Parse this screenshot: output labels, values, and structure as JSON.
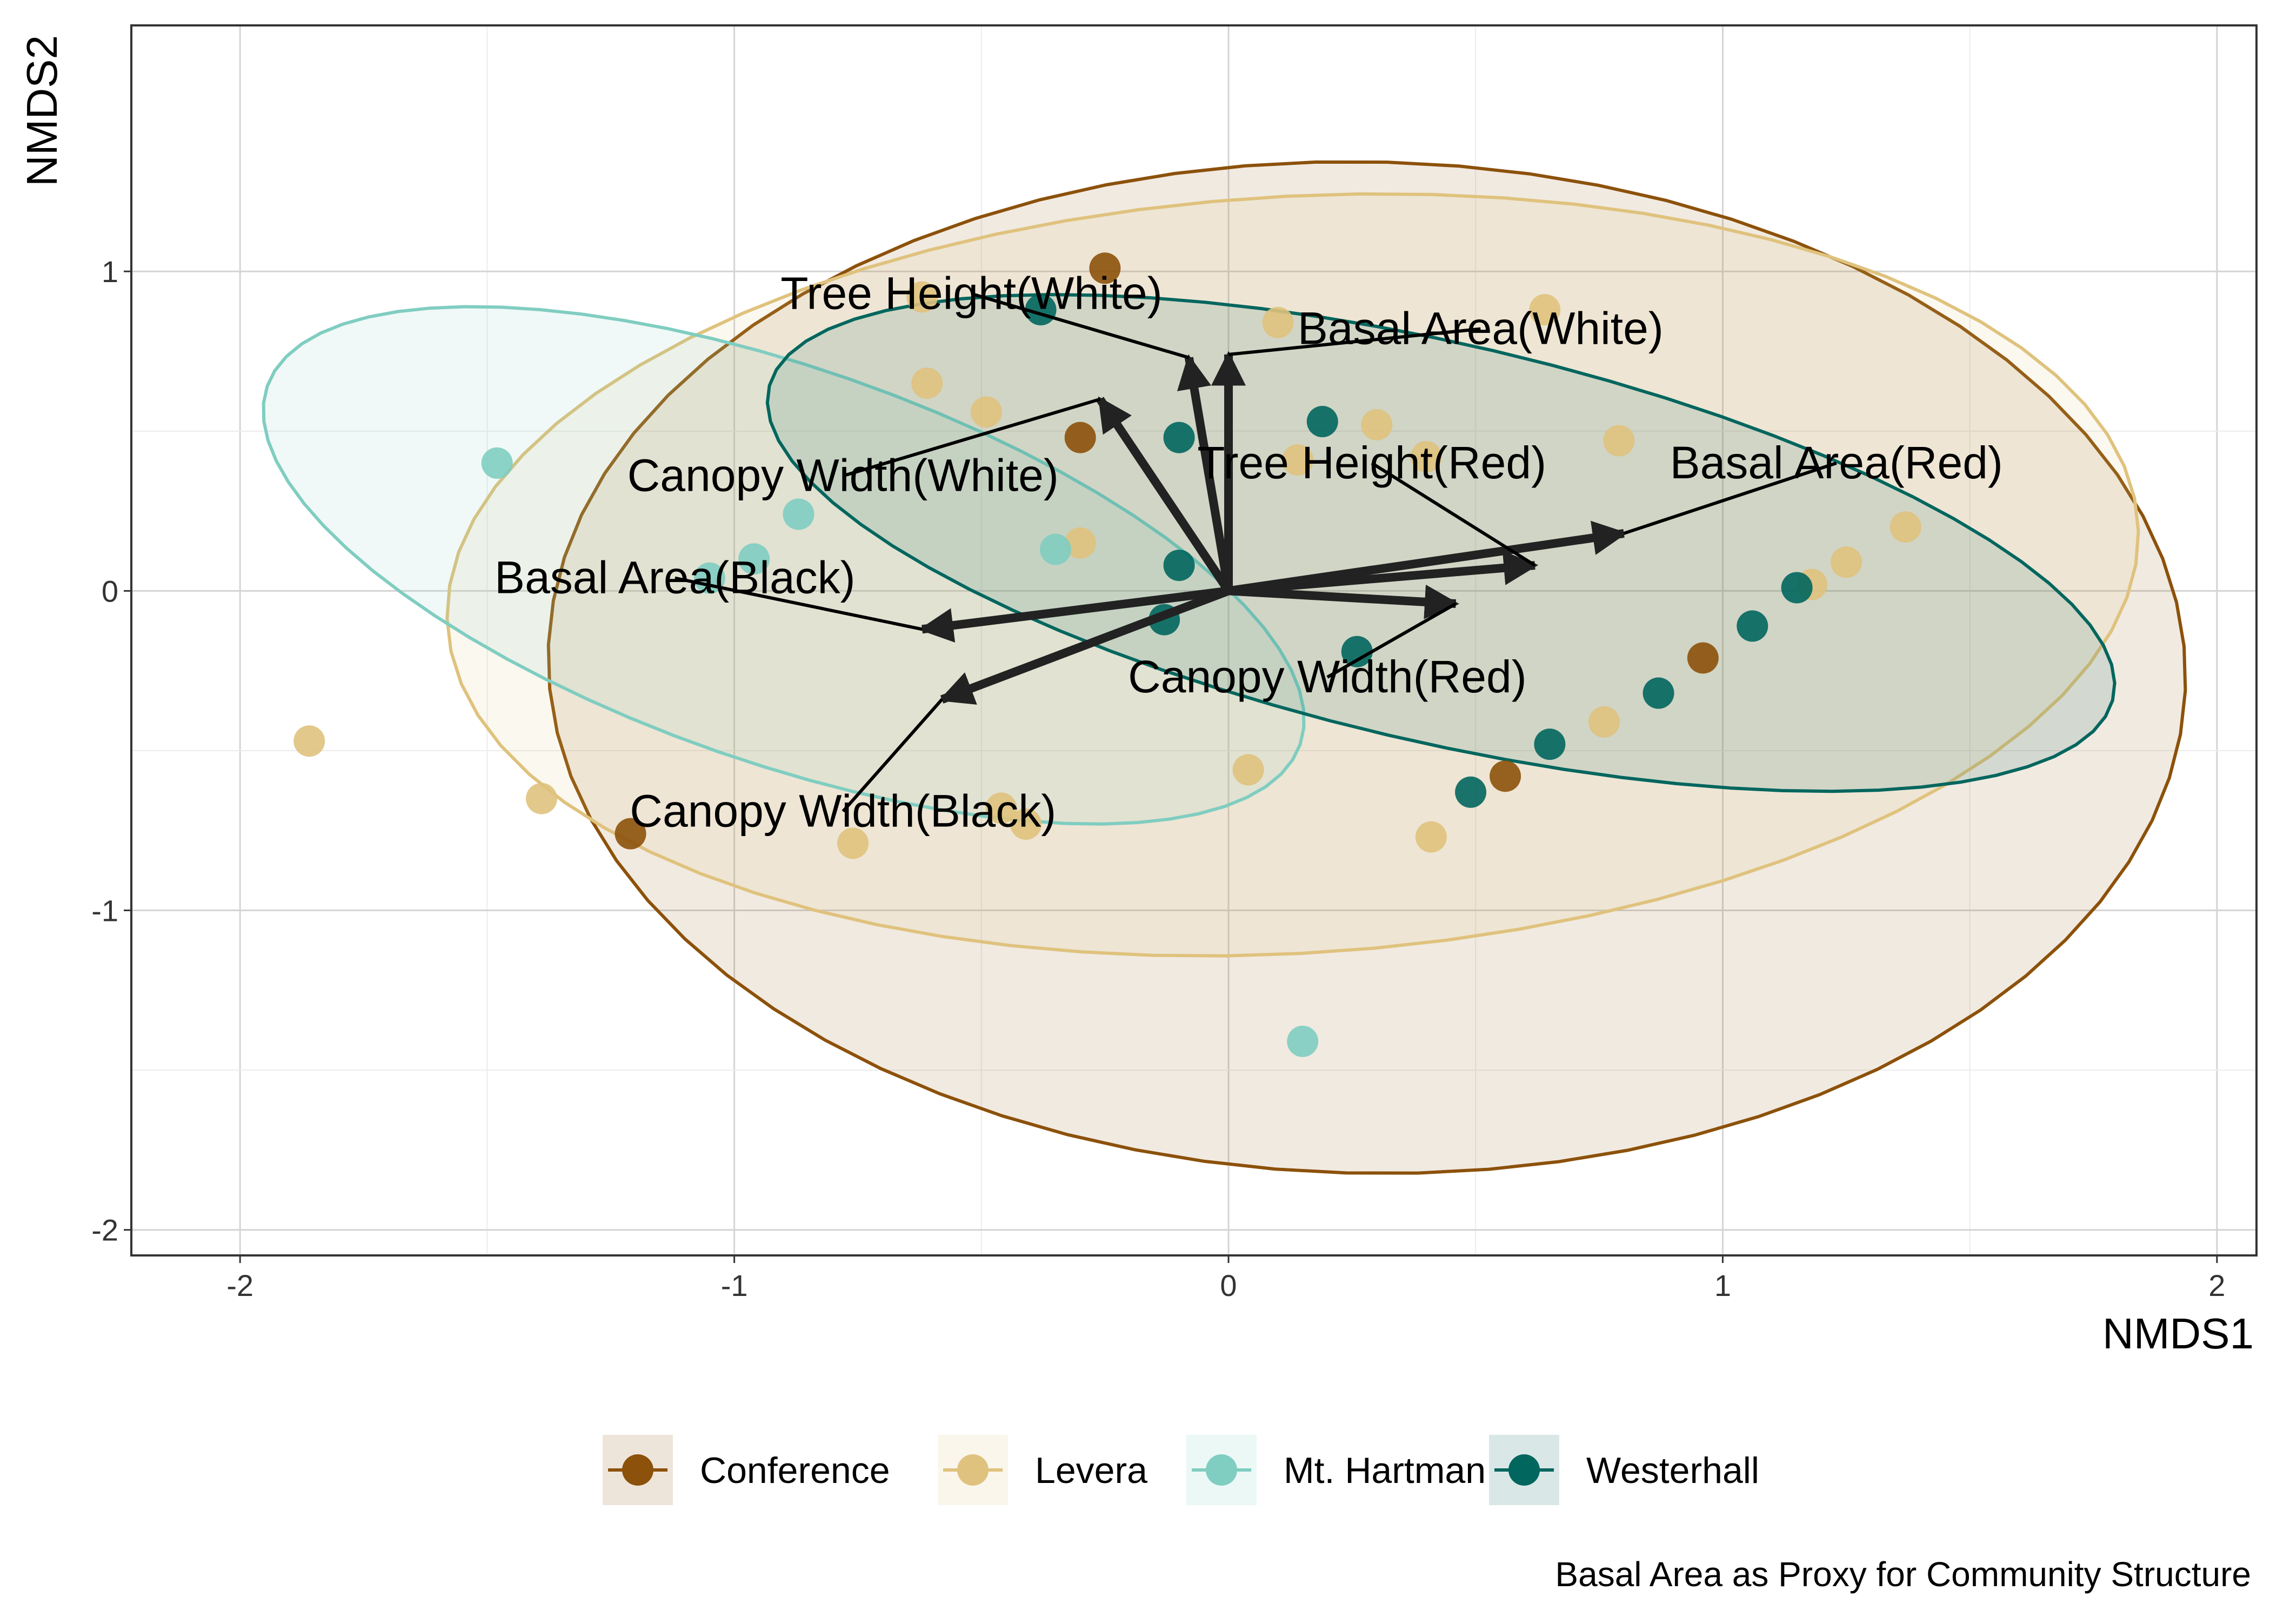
{
  "chart_data": {
    "type": "scatter",
    "xlabel": "NMDS1",
    "ylabel": "NMDS2",
    "caption": "Basal Area as Proxy for Community Structure",
    "xlim": [
      -2.22,
      2.08
    ],
    "ylim": [
      -2.08,
      1.77
    ],
    "x_ticks": [
      -2,
      -1,
      0,
      1,
      2
    ],
    "y_ticks": [
      -2,
      -1,
      0,
      1
    ],
    "grid": true,
    "legend_position": "bottom",
    "series": [
      {
        "name": "Conference",
        "color": "#8C510A",
        "points": [
          {
            "x": -0.25,
            "y": 1.01
          },
          {
            "x": -0.3,
            "y": 0.48
          },
          {
            "x": -1.21,
            "y": -0.76
          },
          {
            "x": 0.56,
            "y": -0.58
          },
          {
            "x": 0.96,
            "y": -0.21
          }
        ],
        "ellipse": {
          "cx": 0.28,
          "cy": -0.24,
          "rx": 1.66,
          "ry": 1.58,
          "angle_deg": -12
        }
      },
      {
        "name": "Levera",
        "color": "#DFC27D",
        "points": [
          {
            "x": -0.62,
            "y": 0.92
          },
          {
            "x": -0.61,
            "y": 0.65
          },
          {
            "x": -0.49,
            "y": 0.56
          },
          {
            "x": 0.1,
            "y": 0.84
          },
          {
            "x": 0.64,
            "y": 0.88
          },
          {
            "x": 0.79,
            "y": 0.47
          },
          {
            "x": 0.3,
            "y": 0.52
          },
          {
            "x": 0.14,
            "y": 0.41
          },
          {
            "x": 0.4,
            "y": 0.42
          },
          {
            "x": -0.3,
            "y": 0.15
          },
          {
            "x": 1.18,
            "y": 0.02
          },
          {
            "x": 1.25,
            "y": 0.09
          },
          {
            "x": 1.37,
            "y": 0.2
          },
          {
            "x": 0.76,
            "y": -0.41
          },
          {
            "x": 0.04,
            "y": -0.56
          },
          {
            "x": 0.41,
            "y": -0.77
          },
          {
            "x": -0.46,
            "y": -0.68
          },
          {
            "x": -0.41,
            "y": -0.73
          },
          {
            "x": -0.76,
            "y": -0.79
          },
          {
            "x": -1.39,
            "y": -0.65
          },
          {
            "x": -1.86,
            "y": -0.47
          }
        ],
        "ellipse": {
          "cx": 0.13,
          "cy": 0.05,
          "rx": 1.72,
          "ry": 1.18,
          "angle_deg": 8
        }
      },
      {
        "name": "Mt. Hartman",
        "color": "#80CDC1",
        "points": [
          {
            "x": -1.48,
            "y": 0.4
          },
          {
            "x": -0.87,
            "y": 0.24
          },
          {
            "x": -0.96,
            "y": 0.1
          },
          {
            "x": -1.05,
            "y": 0.04
          },
          {
            "x": -0.35,
            "y": 0.13
          },
          {
            "x": 0.15,
            "y": -1.41
          }
        ],
        "ellipse": {
          "cx": -0.9,
          "cy": 0.08,
          "rx": 1.2,
          "ry": 0.57,
          "angle_deg": -33
        }
      },
      {
        "name": "Westerhall",
        "color": "#01665E",
        "points": [
          {
            "x": -0.38,
            "y": 0.88
          },
          {
            "x": -0.1,
            "y": 0.48
          },
          {
            "x": 0.19,
            "y": 0.53
          },
          {
            "x": -0.1,
            "y": 0.08
          },
          {
            "x": -0.13,
            "y": -0.09
          },
          {
            "x": 0.26,
            "y": -0.19
          },
          {
            "x": 1.15,
            "y": 0.01
          },
          {
            "x": 1.06,
            "y": -0.11
          },
          {
            "x": 0.87,
            "y": -0.32
          },
          {
            "x": 0.65,
            "y": -0.48
          },
          {
            "x": 0.49,
            "y": -0.63
          }
        ],
        "ellipse": {
          "cx": 0.43,
          "cy": 0.15,
          "rx": 1.45,
          "ry": 0.6,
          "angle_deg": -22
        }
      }
    ],
    "vectors": [
      {
        "label": "Tree Height(White)",
        "x": -0.08,
        "y": 0.73,
        "label_x": -0.52,
        "label_y": 0.93
      },
      {
        "label": "Basal Area(White)",
        "x": 0.0,
        "y": 0.74,
        "label_x": 0.51,
        "label_y": 0.82
      },
      {
        "label": "Canopy Width(White)",
        "x": -0.26,
        "y": 0.6,
        "label_x": -0.78,
        "label_y": 0.36
      },
      {
        "label": "Tree Height(Red)",
        "x": 0.62,
        "y": 0.08,
        "label_x": 0.29,
        "label_y": 0.4
      },
      {
        "label": "Basal Area(Red)",
        "x": 0.8,
        "y": 0.18,
        "label_x": 1.23,
        "label_y": 0.4
      },
      {
        "label": "Canopy Width(Red)",
        "x": 0.46,
        "y": -0.04,
        "label_x": 0.2,
        "label_y": -0.27
      },
      {
        "label": "Basal Area(Black)",
        "x": -0.62,
        "y": -0.12,
        "label_x": -1.12,
        "label_y": 0.04
      },
      {
        "label": "Canopy Width(Black)",
        "x": -0.58,
        "y": -0.34,
        "label_x": -0.78,
        "label_y": -0.69
      }
    ]
  }
}
